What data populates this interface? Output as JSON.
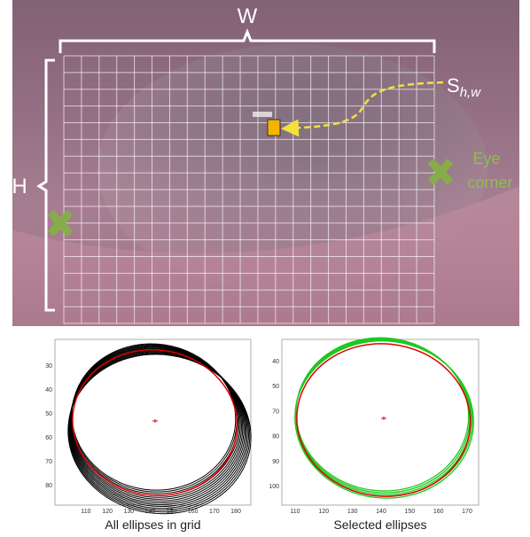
{
  "figure": {
    "image": {
      "width_label": "W",
      "height_label": "H",
      "sample_label": "S",
      "sample_subscript": "h,w",
      "corner_label": [
        "Eye",
        "corner"
      ]
    },
    "plots": [
      {
        "caption": "All ellipses in grid",
        "xticks": [
          "110",
          "120",
          "130",
          "140",
          "150",
          "160",
          "170",
          "180"
        ],
        "yticks": [
          "30",
          "40",
          "50",
          "60",
          "70",
          "80"
        ]
      },
      {
        "caption": "Selected ellipses",
        "xticks": [
          "110",
          "120",
          "130",
          "140",
          "150",
          "160",
          "170"
        ],
        "yticks": [
          "40",
          "50",
          "70",
          "80",
          "90",
          "100"
        ]
      }
    ]
  }
}
